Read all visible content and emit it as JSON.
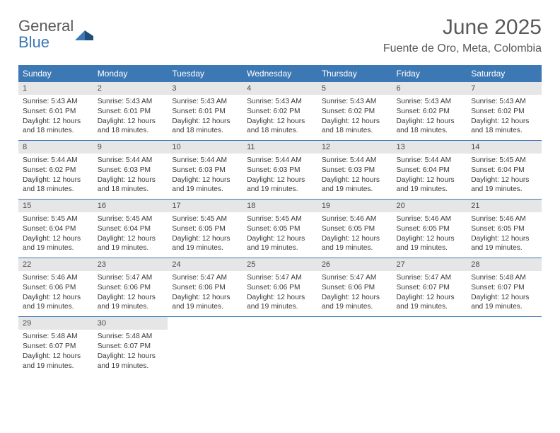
{
  "brand": {
    "line1": "General",
    "line2": "Blue",
    "line1_color": "#595959",
    "line2_color": "#3c78b4"
  },
  "title": "June 2025",
  "location": "Fuente de Oro, Meta, Colombia",
  "colors": {
    "header_bg": "#3c78b4",
    "header_fg": "#ffffff",
    "daynum_bg": "#e6e6e6",
    "rule": "#3c78b4",
    "text": "#3a3a3a"
  },
  "weekdays": [
    "Sunday",
    "Monday",
    "Tuesday",
    "Wednesday",
    "Thursday",
    "Friday",
    "Saturday"
  ],
  "weeks": [
    [
      {
        "n": "1",
        "sr": "5:43 AM",
        "ss": "6:01 PM",
        "dl": "12 hours and 18 minutes."
      },
      {
        "n": "2",
        "sr": "5:43 AM",
        "ss": "6:01 PM",
        "dl": "12 hours and 18 minutes."
      },
      {
        "n": "3",
        "sr": "5:43 AM",
        "ss": "6:01 PM",
        "dl": "12 hours and 18 minutes."
      },
      {
        "n": "4",
        "sr": "5:43 AM",
        "ss": "6:02 PM",
        "dl": "12 hours and 18 minutes."
      },
      {
        "n": "5",
        "sr": "5:43 AM",
        "ss": "6:02 PM",
        "dl": "12 hours and 18 minutes."
      },
      {
        "n": "6",
        "sr": "5:43 AM",
        "ss": "6:02 PM",
        "dl": "12 hours and 18 minutes."
      },
      {
        "n": "7",
        "sr": "5:43 AM",
        "ss": "6:02 PM",
        "dl": "12 hours and 18 minutes."
      }
    ],
    [
      {
        "n": "8",
        "sr": "5:44 AM",
        "ss": "6:02 PM",
        "dl": "12 hours and 18 minutes."
      },
      {
        "n": "9",
        "sr": "5:44 AM",
        "ss": "6:03 PM",
        "dl": "12 hours and 18 minutes."
      },
      {
        "n": "10",
        "sr": "5:44 AM",
        "ss": "6:03 PM",
        "dl": "12 hours and 19 minutes."
      },
      {
        "n": "11",
        "sr": "5:44 AM",
        "ss": "6:03 PM",
        "dl": "12 hours and 19 minutes."
      },
      {
        "n": "12",
        "sr": "5:44 AM",
        "ss": "6:03 PM",
        "dl": "12 hours and 19 minutes."
      },
      {
        "n": "13",
        "sr": "5:44 AM",
        "ss": "6:04 PM",
        "dl": "12 hours and 19 minutes."
      },
      {
        "n": "14",
        "sr": "5:45 AM",
        "ss": "6:04 PM",
        "dl": "12 hours and 19 minutes."
      }
    ],
    [
      {
        "n": "15",
        "sr": "5:45 AM",
        "ss": "6:04 PM",
        "dl": "12 hours and 19 minutes."
      },
      {
        "n": "16",
        "sr": "5:45 AM",
        "ss": "6:04 PM",
        "dl": "12 hours and 19 minutes."
      },
      {
        "n": "17",
        "sr": "5:45 AM",
        "ss": "6:05 PM",
        "dl": "12 hours and 19 minutes."
      },
      {
        "n": "18",
        "sr": "5:45 AM",
        "ss": "6:05 PM",
        "dl": "12 hours and 19 minutes."
      },
      {
        "n": "19",
        "sr": "5:46 AM",
        "ss": "6:05 PM",
        "dl": "12 hours and 19 minutes."
      },
      {
        "n": "20",
        "sr": "5:46 AM",
        "ss": "6:05 PM",
        "dl": "12 hours and 19 minutes."
      },
      {
        "n": "21",
        "sr": "5:46 AM",
        "ss": "6:05 PM",
        "dl": "12 hours and 19 minutes."
      }
    ],
    [
      {
        "n": "22",
        "sr": "5:46 AM",
        "ss": "6:06 PM",
        "dl": "12 hours and 19 minutes."
      },
      {
        "n": "23",
        "sr": "5:47 AM",
        "ss": "6:06 PM",
        "dl": "12 hours and 19 minutes."
      },
      {
        "n": "24",
        "sr": "5:47 AM",
        "ss": "6:06 PM",
        "dl": "12 hours and 19 minutes."
      },
      {
        "n": "25",
        "sr": "5:47 AM",
        "ss": "6:06 PM",
        "dl": "12 hours and 19 minutes."
      },
      {
        "n": "26",
        "sr": "5:47 AM",
        "ss": "6:06 PM",
        "dl": "12 hours and 19 minutes."
      },
      {
        "n": "27",
        "sr": "5:47 AM",
        "ss": "6:07 PM",
        "dl": "12 hours and 19 minutes."
      },
      {
        "n": "28",
        "sr": "5:48 AM",
        "ss": "6:07 PM",
        "dl": "12 hours and 19 minutes."
      }
    ],
    [
      {
        "n": "29",
        "sr": "5:48 AM",
        "ss": "6:07 PM",
        "dl": "12 hours and 19 minutes."
      },
      {
        "n": "30",
        "sr": "5:48 AM",
        "ss": "6:07 PM",
        "dl": "12 hours and 19 minutes."
      },
      null,
      null,
      null,
      null,
      null
    ]
  ],
  "labels": {
    "sunrise": "Sunrise: ",
    "sunset": "Sunset: ",
    "daylight": "Daylight: "
  }
}
